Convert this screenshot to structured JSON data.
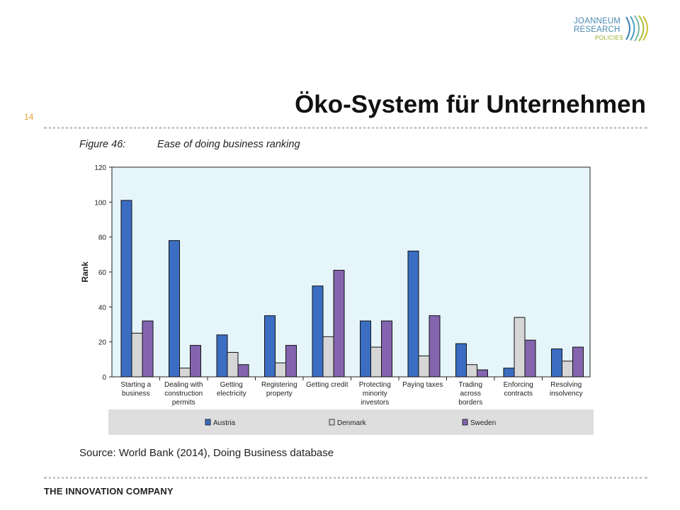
{
  "slide": {
    "number": "14",
    "title": "Öko-System für Unternehmen",
    "footer": "THE INNOVATION COMPANY",
    "logo": {
      "line1": "JOANNEUM",
      "line2": "RESEARCH",
      "line3": "POLICIES"
    }
  },
  "figure": {
    "label": "Figure 46:",
    "title": "Ease of doing business ranking",
    "source": "Source: World Bank (2014), Doing Business database"
  },
  "colors": {
    "Austria": "#3b6ec2",
    "Denmark": "#d6d6d6",
    "Sweden": "#8464ae",
    "plot_bg": "#e5f5f9",
    "legend_bg": "#dedede"
  },
  "chart_data": {
    "type": "bar",
    "title": "",
    "xlabel": "",
    "ylabel": "Rank",
    "ylim": [
      0,
      120
    ],
    "yticks": [
      0,
      20,
      40,
      60,
      80,
      100,
      120
    ],
    "categories": [
      [
        "Starting a",
        "business"
      ],
      [
        "Dealing with",
        "construction",
        "permits"
      ],
      [
        "Getting",
        "electricity"
      ],
      [
        "Registering",
        "property"
      ],
      [
        "Getting credit"
      ],
      [
        "Protecting",
        "minority",
        "investors"
      ],
      [
        "Paying taxes"
      ],
      [
        "Trading",
        "across",
        "borders"
      ],
      [
        "Enforcing",
        "contracts"
      ],
      [
        "Resolving",
        "insolvency"
      ]
    ],
    "series": [
      {
        "name": "Austria",
        "values": [
          101,
          78,
          24,
          35,
          52,
          32,
          72,
          19,
          5,
          16
        ]
      },
      {
        "name": "Denmark",
        "values": [
          25,
          5,
          14,
          8,
          23,
          17,
          12,
          7,
          34,
          9
        ]
      },
      {
        "name": "Sweden",
        "values": [
          32,
          18,
          7,
          18,
          61,
          32,
          35,
          4,
          21,
          17
        ]
      }
    ],
    "legend_position": "bottom",
    "grid": false
  }
}
